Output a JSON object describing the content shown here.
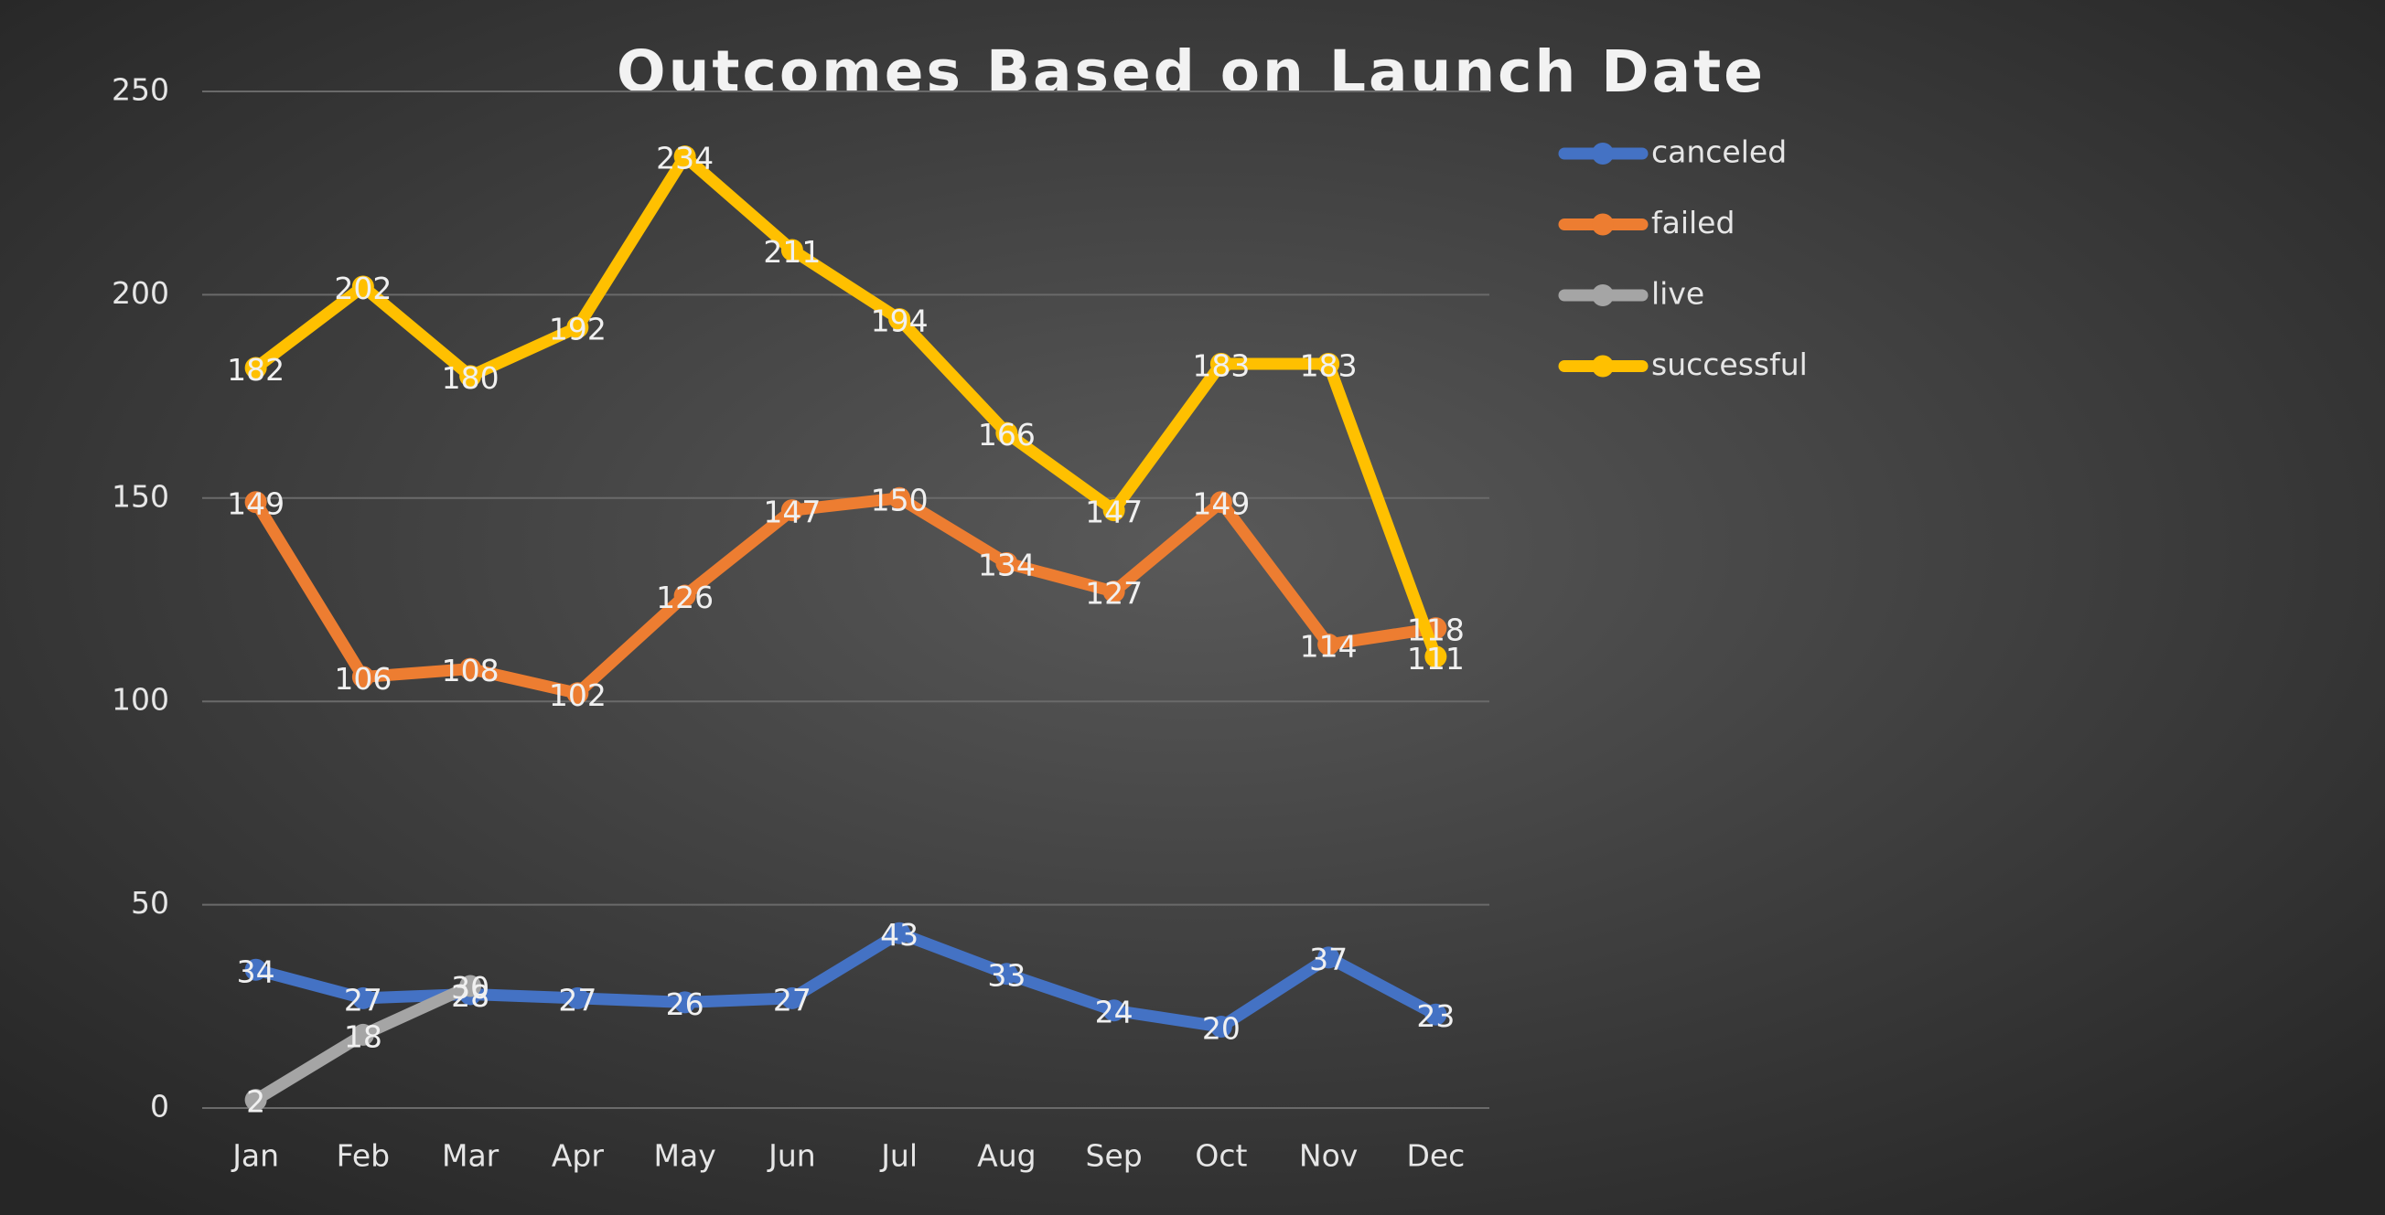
{
  "chart_data": {
    "type": "line",
    "title": "Outcomes Based on Launch Date",
    "categories": [
      "Jan",
      "Feb",
      "Mar",
      "Apr",
      "May",
      "Jun",
      "Jul",
      "Aug",
      "Sep",
      "Oct",
      "Nov",
      "Dec"
    ],
    "series": [
      {
        "name": "canceled",
        "color": "#4472c4",
        "values": [
          34,
          27,
          28,
          27,
          26,
          27,
          43,
          33,
          24,
          20,
          37,
          23
        ]
      },
      {
        "name": "failed",
        "color": "#ed7d31",
        "values": [
          149,
          106,
          108,
          102,
          126,
          147,
          150,
          134,
          127,
          149,
          114,
          118
        ]
      },
      {
        "name": "live",
        "color": "#a5a5a5",
        "values": [
          2,
          18,
          30,
          null,
          null,
          null,
          null,
          null,
          null,
          null,
          null,
          null
        ]
      },
      {
        "name": "successful",
        "color": "#ffc000",
        "values": [
          182,
          202,
          180,
          192,
          234,
          211,
          194,
          166,
          147,
          183,
          183,
          111
        ]
      }
    ],
    "ylim": [
      0,
      250
    ],
    "yticks": [
      0,
      50,
      100,
      150,
      200,
      250
    ],
    "grid": true,
    "legend": "right"
  }
}
